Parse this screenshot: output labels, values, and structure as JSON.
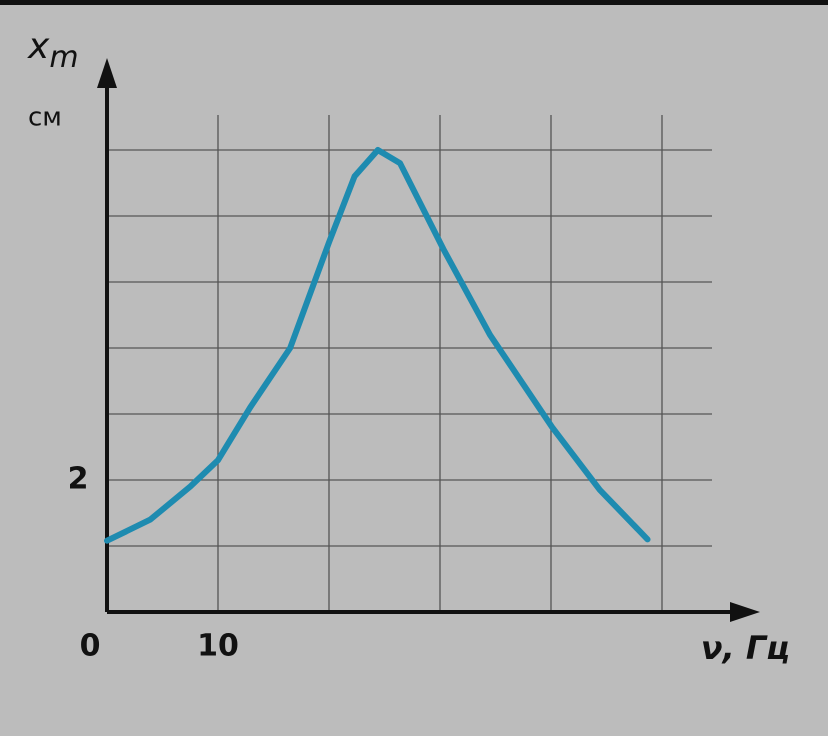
{
  "chart_data": {
    "type": "line",
    "x_label": "ν, Гц",
    "y_label": "x",
    "y_label_sub": "m",
    "y_unit": "см",
    "x": [
      0,
      3.9,
      7.5,
      10,
      12.9,
      16.5,
      20,
      22.3,
      24.4,
      26.4,
      30.3,
      34.5,
      40.1,
      44.4,
      48.7
    ],
    "series": [
      {
        "color": "#1e8bb0",
        "values": [
          1.08,
          1.4,
          1.9,
          2.3,
          3.1,
          4.0,
          5.6,
          6.6,
          7.0,
          6.8,
          5.5,
          4.2,
          2.8,
          1.85,
          1.1
        ]
      }
    ],
    "xlim": [
      0,
      58
    ],
    "ylim": [
      0,
      8.2
    ],
    "xticks": [
      0,
      10,
      {
        "value": 20,
        "label": null
      },
      {
        "value": 30,
        "label": null
      },
      {
        "value": 40,
        "label": null
      },
      {
        "value": 50,
        "label": null
      }
    ],
    "yticks": [
      {
        "value": 1,
        "label": null
      },
      2,
      {
        "value": 3,
        "label": null
      },
      {
        "value": 4,
        "label": null
      },
      {
        "value": 5,
        "label": null
      },
      {
        "value": 6,
        "label": null
      },
      {
        "value": 7,
        "label": null
      }
    ],
    "grid": true
  }
}
